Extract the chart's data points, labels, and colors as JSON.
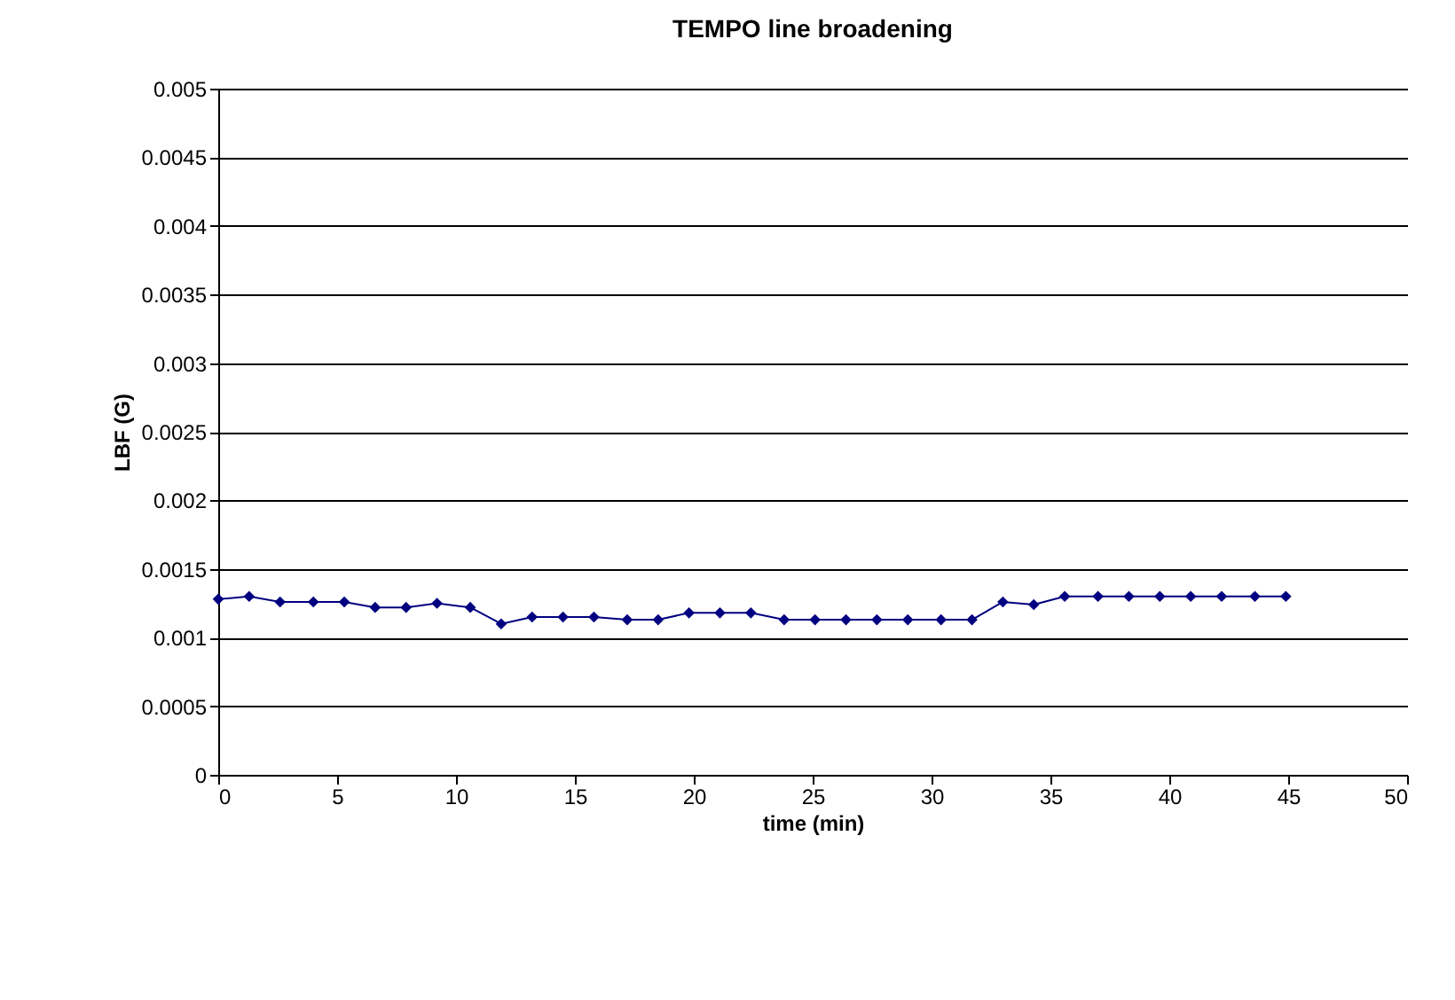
{
  "chart_data": {
    "type": "line",
    "title": "TEMPO line broadening",
    "xlabel": "time (min)",
    "ylabel": "LBF (G)",
    "x": [
      0,
      1.3,
      2.6,
      4.0,
      5.3,
      6.6,
      7.9,
      9.2,
      10.6,
      11.9,
      13.2,
      14.5,
      15.8,
      17.2,
      18.5,
      19.8,
      21.1,
      22.4,
      23.8,
      25.1,
      26.4,
      27.7,
      29.0,
      30.4,
      31.7,
      33.0,
      34.3,
      35.6,
      37.0,
      38.3,
      39.6,
      40.9,
      42.2,
      43.6,
      44.9
    ],
    "series": [
      {
        "color": "#000080",
        "values": [
          0.00128,
          0.0013,
          0.00126,
          0.00126,
          0.00126,
          0.00122,
          0.00122,
          0.00125,
          0.00122,
          0.0011,
          0.00115,
          0.00115,
          0.00115,
          0.00113,
          0.00113,
          0.00118,
          0.00118,
          0.00118,
          0.00113,
          0.00113,
          0.00113,
          0.00113,
          0.00113,
          0.00113,
          0.00113,
          0.00126,
          0.00124,
          0.0013,
          0.0013,
          0.0013,
          0.0013,
          0.0013,
          0.0013,
          0.0013,
          0.0013
        ]
      }
    ],
    "xlim": [
      0,
      50
    ],
    "xticks": [
      0,
      5,
      10,
      15,
      20,
      25,
      30,
      35,
      40,
      45,
      50
    ],
    "ylim": [
      0,
      0.005
    ],
    "yticks": [
      0,
      0.0005,
      0.001,
      0.0015,
      0.002,
      0.0025,
      0.003,
      0.0035,
      0.004,
      0.0045,
      0.005
    ],
    "grid": "y",
    "marker": "diamond",
    "line_style": "solid"
  }
}
